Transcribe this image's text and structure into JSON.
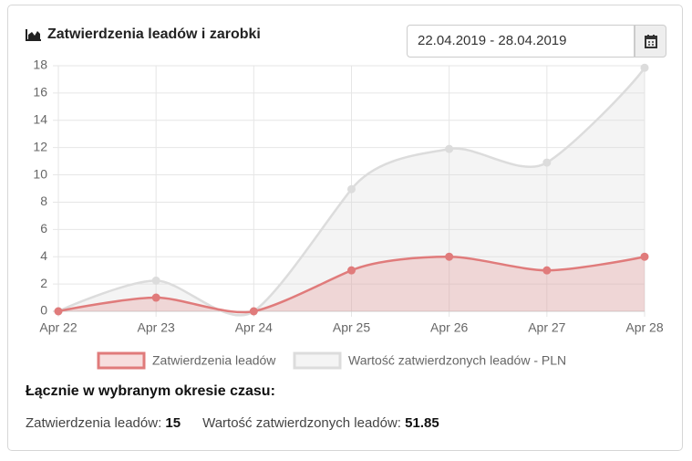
{
  "chart_data": {
    "type": "line",
    "title": "Zatwierdzenia leadów i zarobki",
    "categories": [
      "Apr 22",
      "Apr 23",
      "Apr 24",
      "Apr 25",
      "Apr 26",
      "Apr 27",
      "Apr 28"
    ],
    "series": [
      {
        "name": "Zatwierdzenia leadów",
        "color": "#e07b7b",
        "fill": "rgba(224,123,123,0.25)",
        "values": [
          0,
          1,
          0,
          3,
          4,
          3,
          4
        ]
      },
      {
        "name": "Wartość zatwierdzonych leadów - PLN",
        "color": "#dcdcdc",
        "fill": "rgba(220,220,220,0.3)",
        "values": [
          0,
          2.25,
          0,
          8.95,
          11.9,
          10.9,
          17.85
        ]
      }
    ],
    "ylim": [
      0,
      18
    ],
    "yticks": [
      0,
      2,
      4,
      6,
      8,
      10,
      12,
      14,
      16,
      18
    ],
    "grid": true,
    "legend": "bottom"
  },
  "date_range": "22.04.2019 - 28.04.2019",
  "summary": {
    "heading": "Łącznie w wybranym okresie czasu:",
    "items": [
      {
        "label": "Zatwierdzenia leadów:",
        "value": 15
      },
      {
        "label": "Wartość zatwierdzonych leadów:",
        "value": 51.85
      }
    ]
  }
}
